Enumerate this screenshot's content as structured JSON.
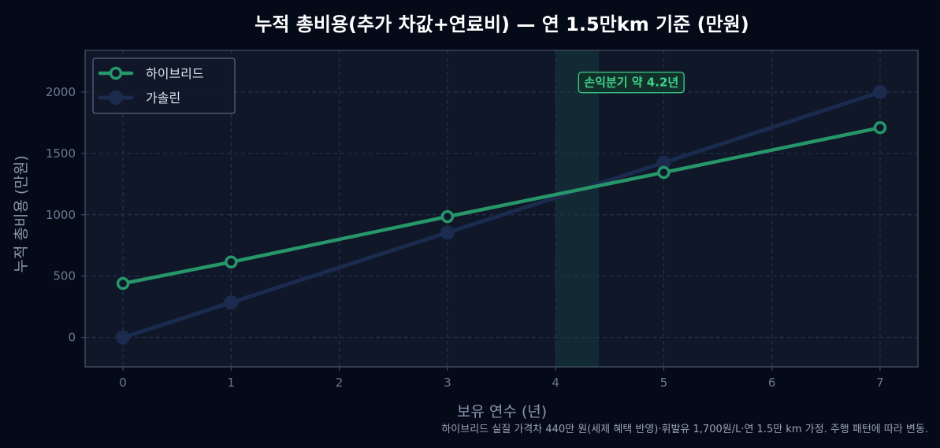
{
  "chart_data": {
    "type": "line",
    "title": "누적 총비용(추가 차값+연료비) — 연 1.5만km 기준 (만원)",
    "xlabel": "보유 연수 (년)",
    "ylabel": "누적 총비용 (만원)",
    "x_ticks": [
      0,
      1,
      2,
      3,
      4,
      5,
      6,
      7
    ],
    "y_ticks": [
      0,
      500,
      1000,
      1500,
      2000
    ],
    "xlim": [
      -0.35,
      7.35
    ],
    "ylim": [
      -240,
      2340
    ],
    "grid": true,
    "legend_position": "top-left",
    "series": [
      {
        "name": "하이브리드",
        "color": "#27976a",
        "x": [
          0,
          1,
          3,
          5,
          7
        ],
        "values": [
          440,
          615,
          985,
          1345,
          1710
        ]
      },
      {
        "name": "가솔린",
        "color": "#1b2b4e",
        "x": [
          0,
          1,
          3,
          5,
          7
        ],
        "values": [
          0,
          285,
          855,
          1425,
          2000
        ]
      }
    ],
    "highlight_band": {
      "x_from": 4.0,
      "x_to": 4.4,
      "color": "#2ea07a"
    },
    "annotation": {
      "text": "손익분기 약 4.2년",
      "x": 4.7,
      "y": 2085
    }
  },
  "footnote": "하이브리드 실질 가격차 440만 원(세제 혜택 반영)·휘발유 1,700원/L·연 1.5만 km 가정. 주행 패턴에 따라 변동."
}
